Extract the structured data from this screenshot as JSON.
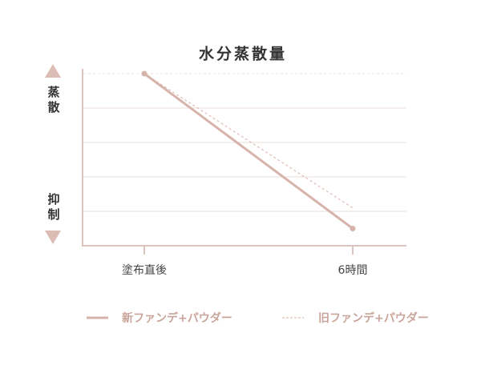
{
  "chart_data": {
    "type": "line",
    "title": "水分蒸散量",
    "y_label_top": "蒸散",
    "y_label_bottom": "抑制",
    "categories": [
      "塗布直後",
      "6時間"
    ],
    "series": [
      {
        "name": "新ファンデ+パウダー",
        "color": "#d7b4ab",
        "style": "solid",
        "values": [
          5,
          0.5
        ]
      },
      {
        "name": "旧ファンデ+パウダー",
        "color": "#dfbdb5",
        "style": "dashed",
        "values": [
          5,
          1.1
        ]
      }
    ],
    "ylim": [
      0,
      5
    ],
    "yticks": [
      1,
      2,
      3,
      4,
      5
    ],
    "grid": true
  }
}
